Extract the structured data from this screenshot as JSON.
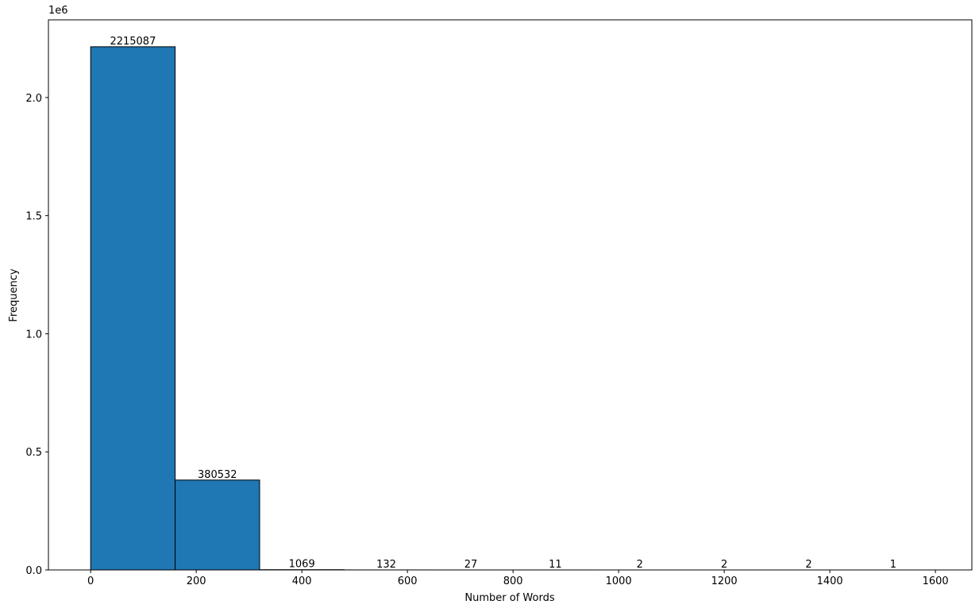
{
  "chart_data": {
    "type": "histogram",
    "xlabel": "Number of Words",
    "ylabel": "Frequency",
    "y_offset_label": "1e6",
    "bins": [
      0,
      160,
      320,
      480,
      640,
      800,
      960,
      1120,
      1280,
      1440,
      1600
    ],
    "values": [
      2215087,
      380532,
      1069,
      132,
      27,
      11,
      2,
      2,
      2,
      1
    ],
    "color": "#1f77b4",
    "edgecolor": "#000000",
    "xlim": [
      -80,
      1669
    ],
    "xticks": [
      0,
      200,
      400,
      600,
      800,
      1000,
      1200,
      1400,
      1600
    ],
    "ylim": [
      0,
      2329000
    ],
    "yticks": [
      {
        "value": 0,
        "label": "0.0"
      },
      {
        "value": 500000,
        "label": "0.5"
      },
      {
        "value": 1000000,
        "label": "1.0"
      },
      {
        "value": 1500000,
        "label": "1.5"
      },
      {
        "value": 2000000,
        "label": "2.0"
      }
    ]
  }
}
